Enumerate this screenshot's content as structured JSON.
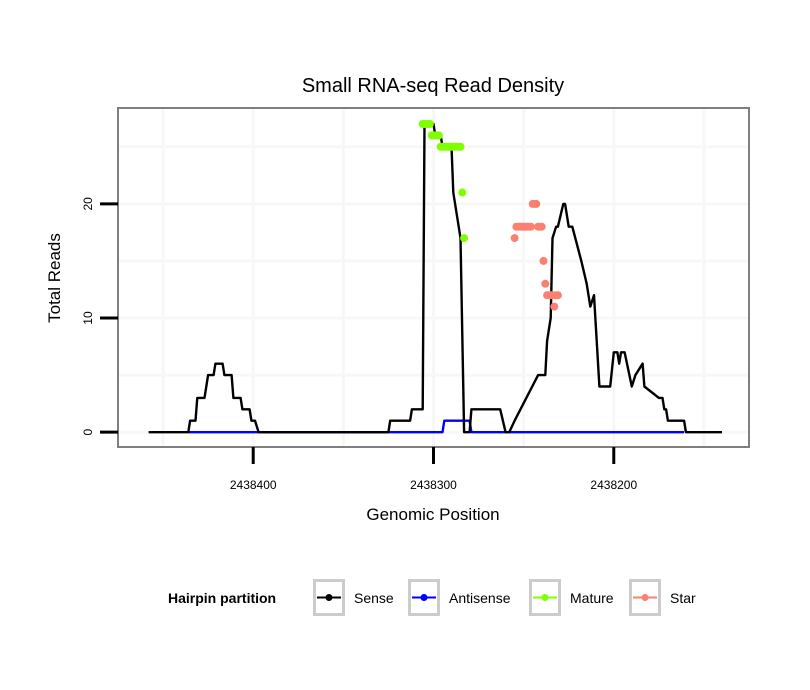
{
  "chart_data": {
    "type": "line",
    "title": "Small RNA-seq Read Density",
    "xlabel": "Genomic Position",
    "ylabel": "Total Reads",
    "x_reversed": true,
    "xlim": [
      2438475,
      2438125
    ],
    "ylim": [
      -1.3,
      28.4
    ],
    "xticks": [
      2438400,
      2438300,
      2438200
    ],
    "xtick_labels": [
      "2438400",
      "2438300",
      "2438200"
    ],
    "yticks": [
      0,
      10,
      20
    ],
    "ytick_labels": [
      "0",
      "10",
      "20"
    ],
    "grid": true,
    "legend": {
      "title": "Hairpin partition",
      "position": "bottom",
      "entries": [
        {
          "name": "Sense",
          "color": "#000000"
        },
        {
          "name": "Antisense",
          "color": "#0000ff"
        },
        {
          "name": "Mature",
          "color": "#7fff00"
        },
        {
          "name": "Star",
          "color": "#fa8072"
        }
      ]
    },
    "series": [
      {
        "name": "Sense",
        "kind": "line",
        "color": "#000000",
        "x": [
          2438458,
          2438436,
          2438435,
          2438432,
          2438431,
          2438427,
          2438425,
          2438422,
          2438421,
          2438417,
          2438416,
          2438412,
          2438411,
          2438407,
          2438406,
          2438402,
          2438401,
          2438399,
          2438397,
          2438396,
          2438325,
          2438324,
          2438313,
          2438312,
          2438306,
          2438305,
          2438300,
          2438299,
          2438296,
          2438295,
          2438290,
          2438289,
          2438285,
          2438283,
          2438280,
          2438279,
          2438263,
          2438260,
          2438258,
          2438255,
          2438242,
          2438238,
          2438237,
          2438235,
          2438234,
          2438232,
          2438231,
          2438228,
          2438227,
          2438225,
          2438223,
          2438218,
          2438215,
          2438214,
          2438213,
          2438211,
          2438208,
          2438205,
          2438202,
          2438200,
          2438198,
          2438197,
          2438196,
          2438194,
          2438190,
          2438188,
          2438184,
          2438183,
          2438175,
          2438173,
          2438172,
          2438171,
          2438170,
          2438169,
          2438168,
          2438161,
          2438160,
          2438140
        ],
        "y": [
          0,
          0,
          1,
          1,
          3,
          3,
          5,
          5,
          6,
          6,
          5,
          5,
          3,
          3,
          2,
          2,
          1,
          1,
          0,
          0,
          0,
          1,
          1,
          2,
          2,
          27,
          27,
          26,
          26,
          25,
          25,
          21,
          17,
          0,
          0,
          2,
          2,
          0,
          0,
          1,
          5,
          5,
          8,
          10,
          17,
          18,
          18,
          20,
          20,
          18,
          18,
          15,
          13,
          12,
          11,
          12,
          4,
          4,
          4,
          7,
          7,
          6,
          7,
          7,
          4,
          5,
          6,
          4,
          3,
          3,
          2,
          2,
          1,
          1,
          1,
          1,
          0,
          0
        ]
      },
      {
        "name": "Antisense",
        "kind": "line",
        "color": "#0000ff",
        "x": [
          2438436,
          2438398,
          2438325,
          2438295,
          2438294,
          2438280,
          2438279,
          2438161
        ],
        "y": [
          0,
          0,
          0,
          0,
          1,
          1,
          0,
          0
        ]
      },
      {
        "name": "Mature",
        "kind": "points",
        "color": "#7fff00",
        "x": [
          2438306,
          2438305,
          2438304,
          2438303,
          2438302,
          2438301,
          2438300,
          2438299,
          2438298,
          2438297,
          2438296,
          2438295,
          2438294,
          2438293,
          2438292,
          2438291,
          2438290,
          2438289,
          2438288,
          2438287,
          2438286,
          2438285,
          2438284,
          2438283
        ],
        "y": [
          27,
          27,
          27,
          27,
          27,
          26,
          26,
          26,
          26,
          26,
          25,
          25,
          25,
          25,
          25,
          25,
          25,
          25,
          25,
          25,
          25,
          25,
          21,
          17
        ]
      },
      {
        "name": "Star",
        "kind": "points",
        "color": "#fa8072",
        "x": [
          2438255,
          2438254,
          2438253,
          2438252,
          2438251,
          2438250,
          2438249,
          2438248,
          2438247,
          2438246,
          2438245,
          2438244,
          2438243,
          2438242,
          2438241,
          2438240,
          2438239,
          2438238,
          2438237,
          2438236,
          2438235,
          2438234,
          2438233,
          2438232,
          2438231
        ],
        "y": [
          17,
          18,
          18,
          18,
          18,
          18,
          18,
          18,
          18,
          18,
          20,
          20,
          20,
          18,
          18,
          18,
          15,
          13,
          12,
          12,
          12,
          12,
          11,
          12,
          12
        ]
      }
    ]
  }
}
